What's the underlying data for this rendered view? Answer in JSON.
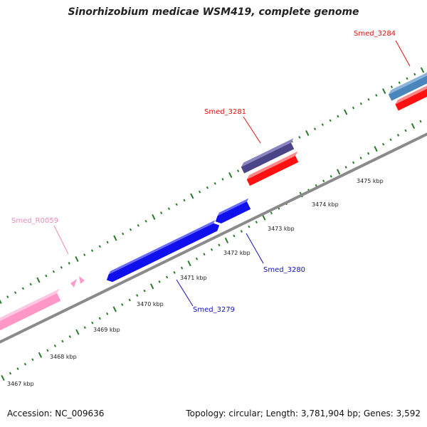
{
  "title": "Sinorhizobium medicae WSM419, complete genome",
  "footer": {
    "accession": "Accession: NC_009636",
    "summary": "Topology: circular; Length: 3,781,904 bp; Genes: 3,592"
  },
  "scale_labels": [
    "3467 kbp",
    "3468 kbp",
    "3469 kbp",
    "3470 kbp",
    "3471 kbp",
    "3472 kbp",
    "3473 kbp",
    "3474 kbp",
    "3475 kbp"
  ],
  "genes": [
    {
      "label": "Smed_3284",
      "color": "#dd1111"
    },
    {
      "label": "Smed_3281",
      "color": "#dd1111"
    },
    {
      "label": "Smed_R0059",
      "color": "#ee88bb"
    },
    {
      "label": "Smed_3280",
      "color": "#1111bb"
    },
    {
      "label": "Smed_3279",
      "color": "#1111bb"
    }
  ],
  "colors": {
    "backbone": "#888888",
    "ticks": "#2a7a2a",
    "forward_gene": "#ff1111",
    "reverse_gene": "#1010ee",
    "rna_gene": "#ff9acb",
    "feature_purple": "#4a4488",
    "feature_steelblue": "#4a82b4"
  }
}
